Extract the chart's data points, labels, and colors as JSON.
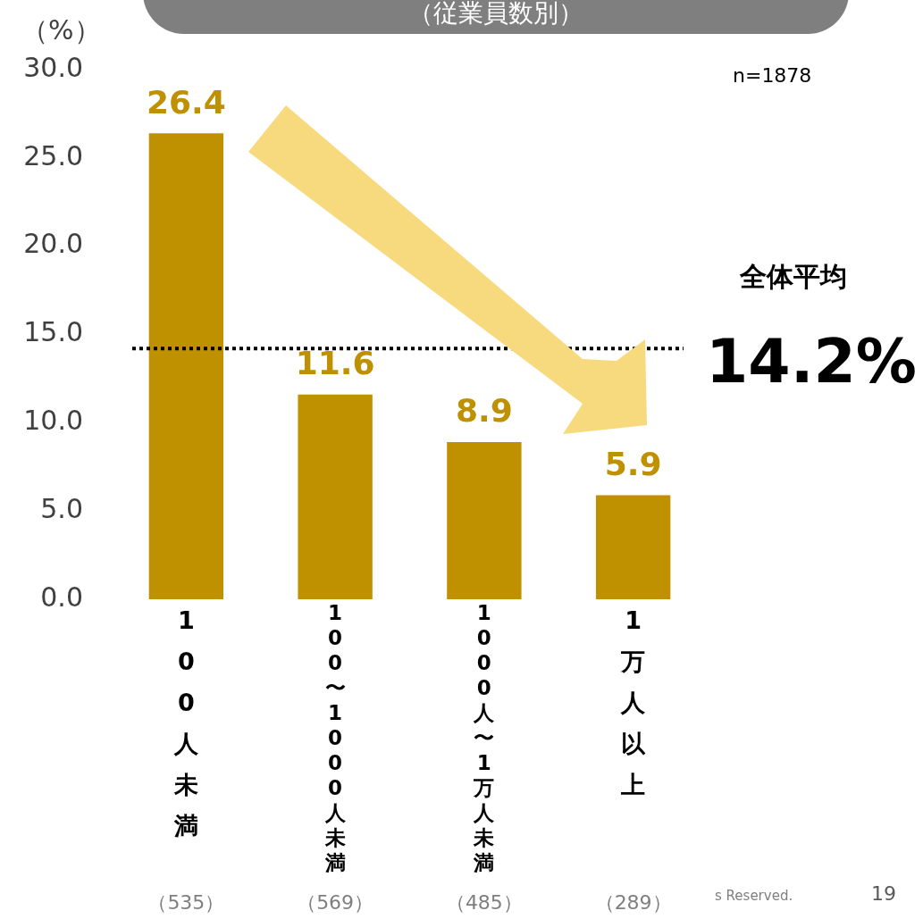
{
  "chart_data": {
    "type": "bar",
    "subtitle": "（従業員数別）",
    "ylabel": "（%）",
    "categories": [
      "100人未満",
      "100〜1000人未満",
      "1000人〜1万人未満",
      "1万人以上"
    ],
    "values": [
      26.4,
      11.6,
      8.9,
      5.9
    ],
    "color": "#bf9000",
    "data_labels": true,
    "ylim": [
      0,
      30
    ],
    "yticks": [
      {
        "value": 0,
        "label": "0.0"
      },
      {
        "value": 5,
        "label": "5.0"
      },
      {
        "value": 10,
        "label": "10.0"
      },
      {
        "value": 15,
        "label": "15.0"
      },
      {
        "value": 20,
        "label": "20.0"
      },
      {
        "value": 25,
        "label": "25.0"
      },
      {
        "value": 30,
        "label": "30.0"
      }
    ],
    "grid": false,
    "legend": false,
    "ref_lines": [
      {
        "axis": "y",
        "value": 14.2,
        "label": "全体平均",
        "color": "#000000",
        "line_style": "dotted"
      }
    ],
    "annotations": [
      "14.2%",
      "n=1878",
      "（535）",
      "（569）",
      "（485）",
      "（289）",
      "s Reserved.",
      "19"
    ]
  }
}
